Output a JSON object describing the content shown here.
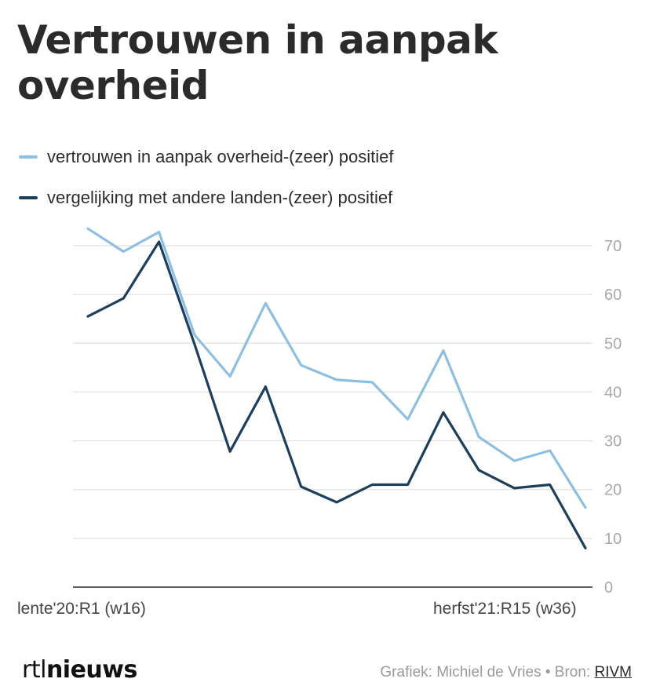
{
  "chart_data": {
    "type": "line",
    "title": "Vertrouwen in aanpak overheid",
    "x_labels": [
      "lente'20:R1 (w16)",
      "herfst'21:R15 (w36)"
    ],
    "ylim": [
      0,
      70
    ],
    "yticks": [
      0,
      10,
      20,
      30,
      40,
      50,
      60,
      70
    ],
    "grid": true,
    "legend_position": "top-left",
    "series": [
      {
        "name": "vertrouwen in aanpak overheid-(zeer) positief",
        "color": "#8fbfe0",
        "values": [
          73.5,
          68.8,
          72.8,
          51.7,
          43.2,
          58.2,
          45.5,
          42.5,
          42,
          34.4,
          48.5,
          30.8,
          25.9,
          28,
          16.3
        ]
      },
      {
        "name": "vergelijking met andere landen-(zeer) positief",
        "color": "#1d3f5c",
        "values": [
          55.5,
          59.2,
          70.8,
          49.8,
          27.8,
          41.1,
          20.6,
          17.4,
          21,
          21,
          35.8,
          24,
          20.3,
          21,
          8
        ]
      }
    ]
  },
  "footer": {
    "logo_rtl": "rtl",
    "logo_nieuws": "nieuws",
    "credit_prefix": "Grafiek: Michiel de Vries • Bron: ",
    "credit_source": "RIVM"
  }
}
